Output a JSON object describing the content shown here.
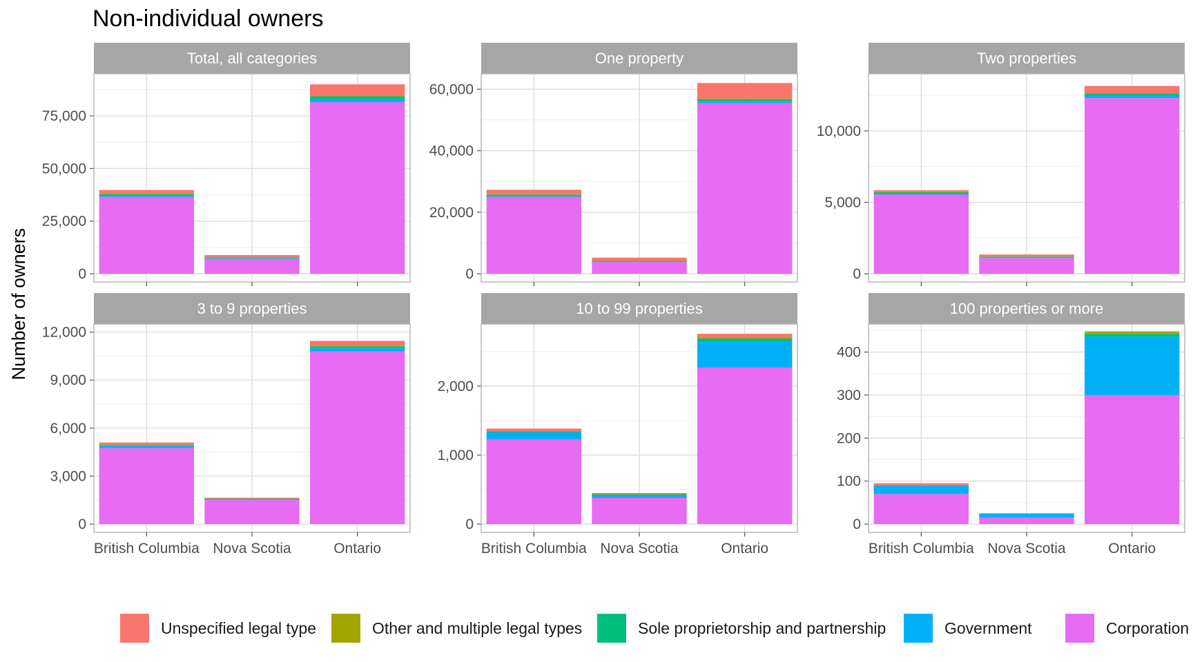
{
  "chart_data": {
    "type": "bar",
    "stacked": true,
    "title": "Non-individual owners",
    "ylabel": "Number of owners",
    "xlabel": "",
    "legend_position": "bottom",
    "grid": true,
    "categories": [
      "British Columbia",
      "Nova Scotia",
      "Ontario"
    ],
    "series_names": [
      "Unspecified legal type",
      "Other and multiple legal types",
      "Sole proprietorship and partnership",
      "Government",
      "Corporation"
    ],
    "colors": {
      "Unspecified legal type": "#F8766D",
      "Other and multiple legal types": "#A3A500",
      "Sole proprietorship and partnership": "#00BF7D",
      "Government": "#00B0F6",
      "Corporation": "#E76BF3"
    },
    "panels": [
      {
        "title": "Total, all categories",
        "ylim": [
          0,
          95000
        ],
        "ticks": [
          0,
          25000,
          50000,
          75000
        ],
        "tick_labels": [
          "0",
          "25,000",
          "50,000",
          "75,000"
        ],
        "series": [
          {
            "name": "Corporation",
            "values": [
              36500,
              7000,
              81500
            ]
          },
          {
            "name": "Government",
            "values": [
              500,
              300,
              1700
            ]
          },
          {
            "name": "Sole proprietorship and partnership",
            "values": [
              800,
              300,
              1000
            ]
          },
          {
            "name": "Other and multiple legal types",
            "values": [
              200,
              100,
              300
            ]
          },
          {
            "name": "Unspecified legal type",
            "values": [
              1800,
              1200,
              5500
            ]
          }
        ]
      },
      {
        "title": "One property",
        "ylim": [
          0,
          65000
        ],
        "ticks": [
          0,
          20000,
          40000,
          60000
        ],
        "tick_labels": [
          "0",
          "20,000",
          "40,000",
          "60,000"
        ],
        "series": [
          {
            "name": "Corporation",
            "values": [
              25000,
              3800,
              55500
            ]
          },
          {
            "name": "Government",
            "values": [
              200,
              150,
              500
            ]
          },
          {
            "name": "Sole proprietorship and partnership",
            "values": [
              500,
              200,
              700
            ]
          },
          {
            "name": "Other and multiple legal types",
            "values": [
              100,
              100,
              200
            ]
          },
          {
            "name": "Unspecified legal type",
            "values": [
              1500,
              1000,
              5100
            ]
          }
        ]
      },
      {
        "title": "Two properties",
        "ylim": [
          0,
          14000
        ],
        "ticks": [
          0,
          5000,
          10000
        ],
        "tick_labels": [
          "0",
          "5,000",
          "10,000"
        ],
        "series": [
          {
            "name": "Corporation",
            "values": [
              5550,
              1100,
              12300
            ]
          },
          {
            "name": "Government",
            "values": [
              50,
              50,
              150
            ]
          },
          {
            "name": "Sole proprietorship and partnership",
            "values": [
              100,
              50,
              150
            ]
          },
          {
            "name": "Other and multiple legal types",
            "values": [
              50,
              20,
              50
            ]
          },
          {
            "name": "Unspecified legal type",
            "values": [
              100,
              130,
              500
            ]
          }
        ]
      },
      {
        "title": "3 to 9 properties",
        "ylim": [
          0,
          12500
        ],
        "ticks": [
          0,
          3000,
          6000,
          9000,
          12000
        ],
        "tick_labels": [
          "0",
          "3,000",
          "6,000",
          "9,000",
          "12,000"
        ],
        "series": [
          {
            "name": "Corporation",
            "values": [
              4750,
              1500,
              10800
            ]
          },
          {
            "name": "Government",
            "values": [
              150,
              50,
              200
            ]
          },
          {
            "name": "Sole proprietorship and partnership",
            "values": [
              50,
              30,
              100
            ]
          },
          {
            "name": "Other and multiple legal types",
            "values": [
              20,
              10,
              50
            ]
          },
          {
            "name": "Unspecified legal type",
            "values": [
              130,
              60,
              300
            ]
          }
        ]
      },
      {
        "title": "10 to 99 properties",
        "ylim": [
          0,
          2900
        ],
        "ticks": [
          0,
          1000,
          2000
        ],
        "tick_labels": [
          "0",
          "1,000",
          "2,000"
        ],
        "series": [
          {
            "name": "Corporation",
            "values": [
              1230,
              380,
              2270
            ]
          },
          {
            "name": "Government",
            "values": [
              100,
              40,
              380
            ]
          },
          {
            "name": "Sole proprietorship and partnership",
            "values": [
              10,
              10,
              40
            ]
          },
          {
            "name": "Other and multiple legal types",
            "values": [
              5,
              5,
              10
            ]
          },
          {
            "name": "Unspecified legal type",
            "values": [
              40,
              15,
              60
            ]
          }
        ]
      },
      {
        "title": "100 properties or more",
        "ylim": [
          0,
          465
        ],
        "ticks": [
          0,
          100,
          200,
          300,
          400
        ],
        "tick_labels": [
          "0",
          "100",
          "200",
          "300",
          "400"
        ],
        "series": [
          {
            "name": "Corporation",
            "values": [
              70,
              15,
              300
            ]
          },
          {
            "name": "Government",
            "values": [
              20,
              10,
              136
            ]
          },
          {
            "name": "Sole proprietorship and partnership",
            "values": [
              0,
              0,
              6
            ]
          },
          {
            "name": "Other and multiple legal types",
            "values": [
              0,
              0,
              6
            ]
          },
          {
            "name": "Unspecified legal type",
            "values": [
              5,
              0,
              0
            ]
          }
        ]
      }
    ]
  }
}
